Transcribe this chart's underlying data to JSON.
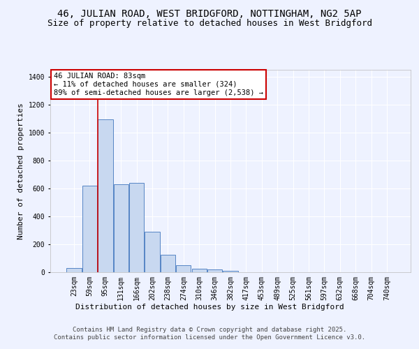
{
  "title1": "46, JULIAN ROAD, WEST BRIDGFORD, NOTTINGHAM, NG2 5AP",
  "title2": "Size of property relative to detached houses in West Bridgford",
  "xlabel": "Distribution of detached houses by size in West Bridgford",
  "ylabel": "Number of detached properties",
  "categories": [
    "23sqm",
    "59sqm",
    "95sqm",
    "131sqm",
    "166sqm",
    "202sqm",
    "238sqm",
    "274sqm",
    "310sqm",
    "346sqm",
    "382sqm",
    "417sqm",
    "453sqm",
    "489sqm",
    "525sqm",
    "561sqm",
    "597sqm",
    "632sqm",
    "668sqm",
    "704sqm",
    "740sqm"
  ],
  "values": [
    30,
    620,
    1095,
    630,
    640,
    290,
    125,
    48,
    25,
    22,
    10,
    0,
    0,
    0,
    0,
    0,
    0,
    0,
    0,
    0,
    0
  ],
  "bar_color": "#c8d8f0",
  "bar_edge_color": "#5585c5",
  "vline_color": "#cc0000",
  "vline_x_index": 1.5,
  "annotation_text": "46 JULIAN ROAD: 83sqm\n← 11% of detached houses are smaller (324)\n89% of semi-detached houses are larger (2,538) →",
  "annotation_box_color": "#ffffff",
  "annotation_box_edge_color": "#cc0000",
  "bg_color": "#eef2ff",
  "grid_color": "#ffffff",
  "footer_text": "Contains HM Land Registry data © Crown copyright and database right 2025.\nContains public sector information licensed under the Open Government Licence v3.0.",
  "ylim": [
    0,
    1450
  ],
  "yticks": [
    0,
    200,
    400,
    600,
    800,
    1000,
    1200,
    1400
  ],
  "title1_fontsize": 10,
  "title2_fontsize": 9,
  "xlabel_fontsize": 8,
  "ylabel_fontsize": 8,
  "tick_fontsize": 7,
  "annot_fontsize": 7.5,
  "footer_fontsize": 6.5
}
